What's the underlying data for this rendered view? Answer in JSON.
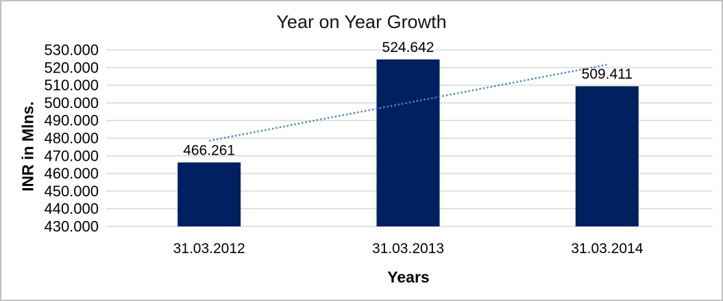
{
  "chart_data": {
    "type": "bar",
    "title": "Year on Year Growth",
    "xlabel": "Years",
    "ylabel": "INR in Mlns.",
    "categories": [
      "31.03.2012",
      "31.03.2013",
      "31.03.2014"
    ],
    "values": [
      466261,
      524642,
      509411
    ],
    "value_labels": [
      "466.261",
      "524.642",
      "509.411"
    ],
    "ylim": [
      430000,
      530000
    ],
    "ytick_step": 10000,
    "ytick_labels": [
      "430.000",
      "440.000",
      "450.000",
      "460.000",
      "470.000",
      "480.000",
      "490.000",
      "500.000",
      "510.000",
      "520.000",
      "530.000"
    ],
    "grid": true,
    "legend_position": "none",
    "trendline": {
      "type": "linear",
      "style": "dotted",
      "start_value": 478530,
      "end_value": 521680
    },
    "colors": {
      "bar": "#012060",
      "trendline": "#4e87c8",
      "gridline": "#d9d9d9",
      "text": "#000000",
      "title_text": "#141414",
      "frame_border": "#c0c0c0",
      "background": "#ffffff"
    }
  }
}
